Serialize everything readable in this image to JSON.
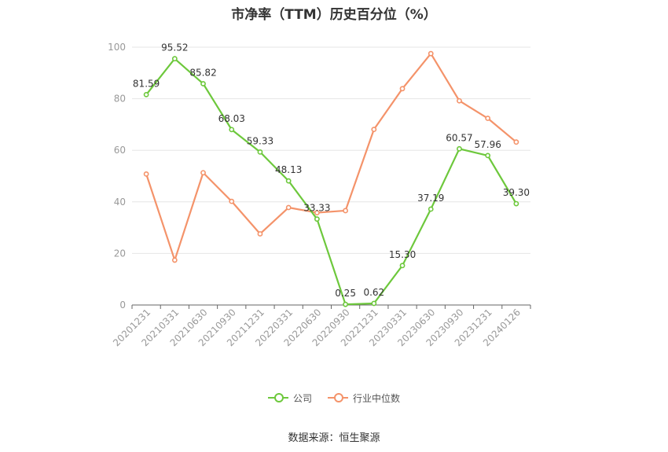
{
  "chart_data": {
    "type": "line",
    "title": "市净率（TTM）历史百分位（%）",
    "categories": [
      "20201231",
      "20210331",
      "20210630",
      "20210930",
      "20211231",
      "20220331",
      "20220630",
      "20220930",
      "20221231",
      "20230331",
      "20230630",
      "20230930",
      "20231231",
      "20240126"
    ],
    "ylim": [
      0,
      100
    ],
    "yticks": [
      0,
      20,
      40,
      60,
      80,
      100
    ],
    "grid": true,
    "legend_position": "bottom-center",
    "series": [
      {
        "name": "公司",
        "color": "#6dc83c",
        "show_labels": true,
        "values": [
          81.59,
          95.52,
          85.82,
          68.03,
          59.33,
          48.13,
          33.33,
          0.25,
          0.62,
          15.3,
          37.19,
          60.57,
          57.96,
          39.3
        ],
        "labels": [
          "81.59",
          "95.52",
          "85.82",
          "68.03",
          "59.33",
          "48.13",
          "33.33",
          "0.25",
          "0.62",
          "15.30",
          "37.19",
          "60.57",
          "57.96",
          "39.30"
        ]
      },
      {
        "name": "行业中位数",
        "color": "#f4936a",
        "show_labels": false,
        "values": [
          50.8,
          17.4,
          51.3,
          40.2,
          27.6,
          37.8,
          35.8,
          36.6,
          68.1,
          83.9,
          97.5,
          79.2,
          72.4,
          63.2
        ]
      }
    ]
  },
  "source": "数据来源：恒生聚源"
}
